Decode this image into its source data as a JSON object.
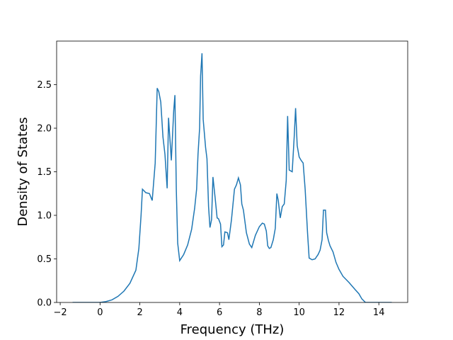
{
  "chart_data": {
    "type": "line",
    "x_label": "Frequency (THz)",
    "y_label": "Density of States",
    "series": [
      {
        "color": "#1f77b4",
        "x": [
          -1.38,
          -0.5,
          0,
          0.3,
          0.6,
          0.9,
          1.2,
          1.5,
          1.8,
          1.95,
          2.06,
          2.13,
          2.3,
          2.48,
          2.62,
          2.77,
          2.87,
          2.95,
          3.05,
          3.16,
          3.26,
          3.37,
          3.44,
          3.58,
          3.7,
          3.76,
          3.83,
          3.9,
          4.0,
          4.2,
          4.4,
          4.6,
          4.75,
          4.85,
          4.92,
          5.0,
          5.05,
          5.12,
          5.18,
          5.3,
          5.37,
          5.45,
          5.52,
          5.6,
          5.67,
          5.78,
          5.88,
          5.95,
          6.05,
          6.12,
          6.2,
          6.27,
          6.4,
          6.47,
          6.6,
          6.75,
          6.85,
          6.95,
          7.05,
          7.12,
          7.2,
          7.35,
          7.5,
          7.62,
          7.8,
          8.0,
          8.15,
          8.25,
          8.35,
          8.42,
          8.5,
          8.58,
          8.7,
          8.8,
          8.88,
          8.95,
          9.05,
          9.15,
          9.25,
          9.35,
          9.42,
          9.5,
          9.65,
          9.75,
          9.82,
          9.9,
          10.0,
          10.1,
          10.2,
          10.3,
          10.42,
          10.5,
          10.65,
          10.8,
          10.95,
          11.05,
          11.15,
          11.22,
          11.32,
          11.38,
          11.47,
          11.55,
          11.7,
          11.85,
          12.0,
          12.2,
          12.5,
          12.8,
          13.0,
          13.15,
          13.33,
          13.7,
          14.65
        ],
        "values": [
          0,
          0,
          0,
          0.01,
          0.03,
          0.07,
          0.13,
          0.22,
          0.37,
          0.62,
          1.0,
          1.3,
          1.26,
          1.25,
          1.17,
          1.6,
          2.46,
          2.42,
          2.3,
          1.9,
          1.7,
          1.31,
          2.12,
          1.63,
          2.2,
          2.38,
          1.3,
          0.68,
          0.48,
          0.55,
          0.66,
          0.84,
          1.08,
          1.3,
          1.7,
          2.0,
          2.6,
          2.86,
          2.1,
          1.78,
          1.65,
          1.1,
          0.86,
          0.95,
          1.44,
          1.2,
          0.97,
          0.96,
          0.9,
          0.64,
          0.66,
          0.81,
          0.8,
          0.72,
          0.95,
          1.3,
          1.35,
          1.43,
          1.35,
          1.13,
          1.06,
          0.8,
          0.67,
          0.63,
          0.77,
          0.87,
          0.91,
          0.9,
          0.82,
          0.65,
          0.62,
          0.63,
          0.72,
          0.85,
          1.25,
          1.17,
          0.97,
          1.1,
          1.13,
          1.4,
          2.14,
          1.52,
          1.5,
          1.9,
          2.23,
          1.8,
          1.67,
          1.63,
          1.6,
          1.3,
          0.8,
          0.51,
          0.49,
          0.5,
          0.55,
          0.6,
          0.72,
          1.06,
          1.06,
          0.8,
          0.71,
          0.65,
          0.58,
          0.46,
          0.38,
          0.3,
          0.23,
          0.15,
          0.1,
          0.04,
          0,
          0,
          0
        ]
      }
    ],
    "xlim": [
      -2.18,
      15.45
    ],
    "ylim": [
      0,
      3.0
    ],
    "xticks": [
      {
        "value": -2,
        "label": "−2"
      },
      0,
      2,
      4,
      6,
      8,
      10,
      12,
      14
    ],
    "yticks": [
      {
        "value": 0,
        "label": "0.0"
      },
      0.5,
      {
        "value": 1,
        "label": "1.0"
      },
      1.5,
      {
        "value": 2,
        "label": "2.0"
      },
      2.5
    ]
  }
}
